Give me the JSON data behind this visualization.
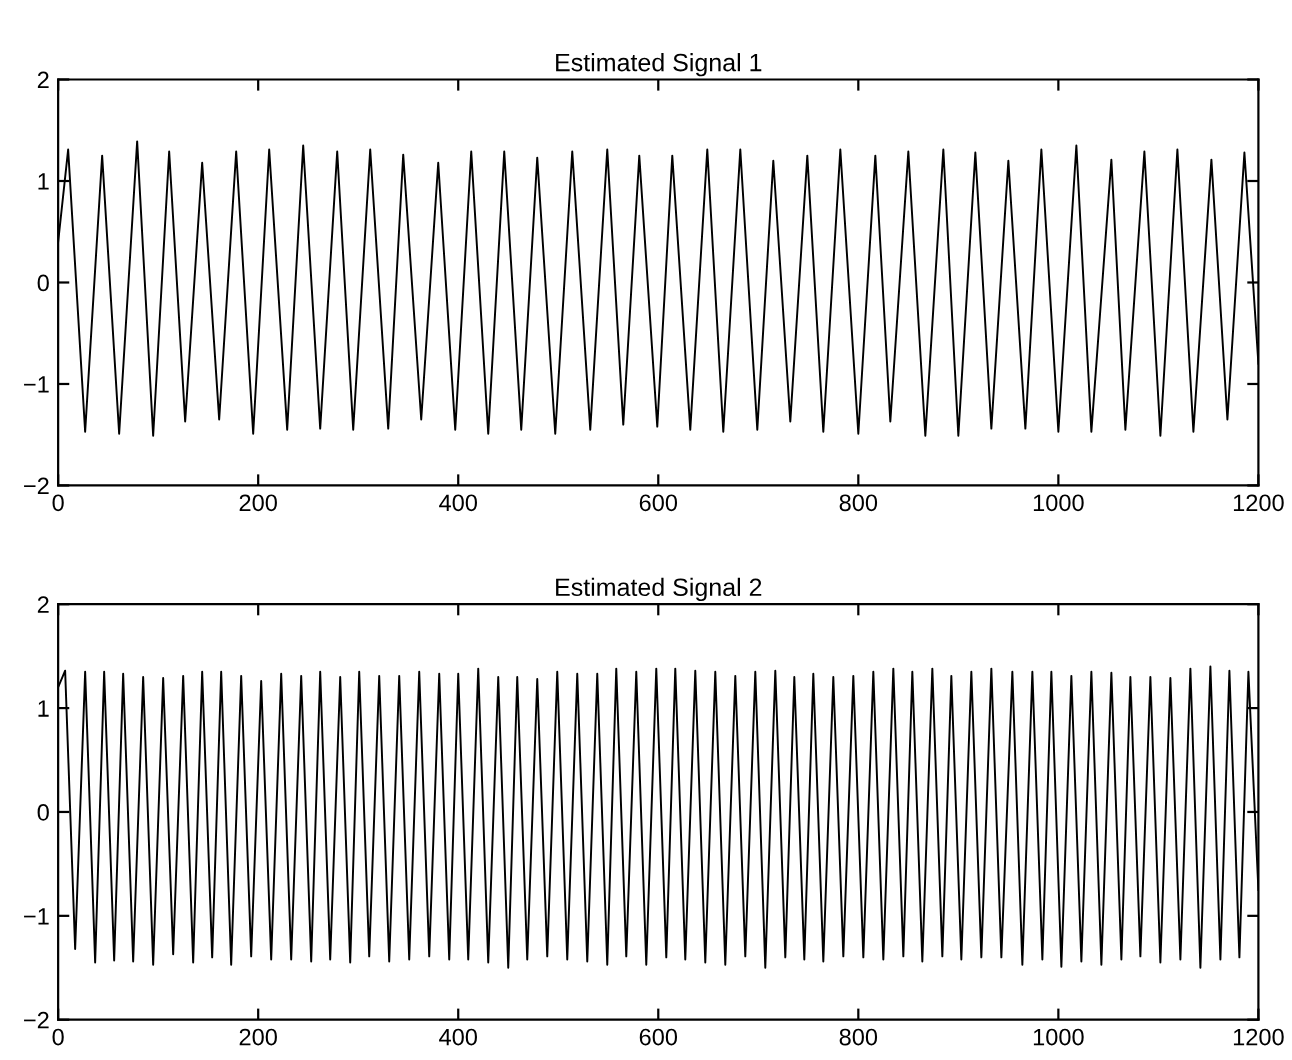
{
  "chart_data": [
    {
      "type": "line",
      "title": "Estimated Signal 1",
      "xlim": [
        0,
        1200
      ],
      "ylim": [
        -2,
        2
      ],
      "xticks": [
        0,
        200,
        400,
        600,
        800,
        1000,
        1200
      ],
      "yticks": [
        -2,
        -1,
        0,
        1,
        2
      ],
      "grid": false,
      "line_style": "solid",
      "marker": "none",
      "series": [
        {
          "color": "#000000",
          "x": [
            0,
            10,
            27,
            44,
            61,
            79,
            95,
            111,
            127,
            144,
            161,
            178,
            195,
            211,
            229,
            245,
            262,
            279,
            295,
            312,
            330,
            345,
            363,
            380,
            397,
            413,
            430,
            446,
            463,
            479,
            497,
            514,
            532,
            549,
            565,
            581,
            599,
            614,
            632,
            649,
            665,
            682,
            699,
            715,
            732,
            749,
            765,
            782,
            800,
            817,
            832,
            850,
            867,
            885,
            900,
            917,
            933,
            950,
            967,
            983,
            1000,
            1018,
            1033,
            1053,
            1067,
            1086,
            1102,
            1119,
            1135,
            1153,
            1169,
            1186,
            1200
          ],
          "values": [
            0.4,
            1.31,
            -1.47,
            1.25,
            -1.49,
            1.39,
            -1.51,
            1.29,
            -1.37,
            1.18,
            -1.35,
            1.29,
            -1.49,
            1.31,
            -1.45,
            1.35,
            -1.44,
            1.29,
            -1.45,
            1.31,
            -1.44,
            1.26,
            -1.35,
            1.18,
            -1.45,
            1.29,
            -1.49,
            1.29,
            -1.45,
            1.23,
            -1.49,
            1.29,
            -1.45,
            1.31,
            -1.4,
            1.25,
            -1.42,
            1.25,
            -1.45,
            1.31,
            -1.47,
            1.31,
            -1.45,
            1.2,
            -1.37,
            1.25,
            -1.47,
            1.31,
            -1.49,
            1.25,
            -1.37,
            1.29,
            -1.51,
            1.31,
            -1.51,
            1.28,
            -1.44,
            1.2,
            -1.44,
            1.31,
            -1.47,
            1.35,
            -1.47,
            1.21,
            -1.45,
            1.29,
            -1.51,
            1.31,
            -1.47,
            1.21,
            -1.35,
            1.28,
            -0.8
          ]
        }
      ]
    },
    {
      "type": "line",
      "title": "Estimated Signal 2",
      "xlim": [
        0,
        1200
      ],
      "ylim": [
        -2,
        2
      ],
      "xticks": [
        0,
        200,
        400,
        600,
        800,
        1000,
        1200
      ],
      "yticks": [
        -2,
        -1,
        0,
        1,
        2
      ],
      "grid": false,
      "line_style": "solid",
      "marker": "none",
      "series": [
        {
          "color": "#000000",
          "x": [
            0,
            7,
            17,
            27,
            37,
            46,
            56,
            65,
            75,
            85,
            95,
            105,
            115,
            125,
            135,
            144,
            154,
            163,
            173,
            183,
            193,
            203,
            213,
            223,
            233,
            243,
            253,
            262,
            272,
            282,
            292,
            301,
            311,
            321,
            331,
            341,
            351,
            361,
            371,
            381,
            391,
            400,
            410,
            420,
            430,
            440,
            450,
            459,
            469,
            479,
            489,
            499,
            509,
            519,
            529,
            539,
            549,
            558,
            568,
            578,
            588,
            598,
            608,
            617,
            627,
            637,
            647,
            657,
            667,
            677,
            687,
            697,
            707,
            717,
            727,
            736,
            746,
            755,
            765,
            775,
            785,
            795,
            805,
            815,
            825,
            835,
            845,
            854,
            864,
            874,
            884,
            893,
            903,
            913,
            923,
            933,
            943,
            954,
            964,
            974,
            984,
            993,
            1003,
            1013,
            1023,
            1033,
            1043,
            1053,
            1063,
            1072,
            1082,
            1092,
            1102,
            1112,
            1122,
            1132,
            1142,
            1152,
            1162,
            1171,
            1181,
            1190,
            1200
          ],
          "values": [
            1.2,
            1.36,
            -1.32,
            1.35,
            -1.45,
            1.35,
            -1.43,
            1.33,
            -1.44,
            1.3,
            -1.47,
            1.29,
            -1.37,
            1.31,
            -1.45,
            1.35,
            -1.4,
            1.35,
            -1.47,
            1.31,
            -1.39,
            1.26,
            -1.42,
            1.33,
            -1.42,
            1.31,
            -1.44,
            1.35,
            -1.42,
            1.3,
            -1.45,
            1.35,
            -1.39,
            1.31,
            -1.44,
            1.31,
            -1.42,
            1.35,
            -1.39,
            1.33,
            -1.42,
            1.33,
            -1.42,
            1.38,
            -1.45,
            1.3,
            -1.5,
            1.3,
            -1.42,
            1.28,
            -1.39,
            1.35,
            -1.42,
            1.33,
            -1.44,
            1.33,
            -1.47,
            1.38,
            -1.39,
            1.35,
            -1.47,
            1.38,
            -1.4,
            1.38,
            -1.42,
            1.36,
            -1.45,
            1.35,
            -1.47,
            1.31,
            -1.39,
            1.35,
            -1.5,
            1.36,
            -1.4,
            1.3,
            -1.42,
            1.33,
            -1.44,
            1.3,
            -1.39,
            1.31,
            -1.4,
            1.35,
            -1.42,
            1.38,
            -1.39,
            1.35,
            -1.44,
            1.38,
            -1.39,
            1.31,
            -1.42,
            1.35,
            -1.4,
            1.38,
            -1.4,
            1.35,
            -1.47,
            1.35,
            -1.42,
            1.35,
            -1.49,
            1.31,
            -1.44,
            1.35,
            -1.47,
            1.34,
            -1.42,
            1.3,
            -1.39,
            1.3,
            -1.45,
            1.29,
            -1.42,
            1.38,
            -1.5,
            1.4,
            -1.42,
            1.36,
            -1.4,
            1.35,
            -0.75
          ]
        }
      ]
    }
  ]
}
